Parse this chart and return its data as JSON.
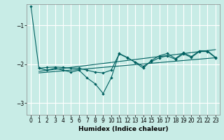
{
  "xlabel": "Humidex (Indice chaleur)",
  "bg_color": "#c8ece6",
  "grid_color": "#ffffff",
  "line_color": "#006060",
  "xlim": [
    -0.5,
    23.5
  ],
  "ylim": [
    -3.3,
    -0.45
  ],
  "yticks": [
    -3,
    -2,
    -1
  ],
  "xticks": [
    0,
    1,
    2,
    3,
    4,
    5,
    6,
    7,
    8,
    9,
    10,
    11,
    12,
    13,
    14,
    15,
    16,
    17,
    18,
    19,
    20,
    21,
    22,
    23
  ],
  "line1_x": [
    0,
    1,
    2,
    3,
    4,
    5,
    6,
    7,
    8,
    9,
    10,
    11,
    12,
    13,
    14,
    15,
    16,
    17,
    18,
    19,
    20,
    21,
    22,
    23
  ],
  "line1_y": [
    -0.5,
    -2.1,
    -2.15,
    -2.1,
    -2.15,
    -2.2,
    -2.15,
    -2.35,
    -2.5,
    -2.75,
    -2.35,
    -1.72,
    -1.82,
    -1.95,
    -2.1,
    -1.9,
    -1.78,
    -1.72,
    -1.85,
    -1.7,
    -1.8,
    -1.65,
    -1.65,
    -1.82
  ],
  "line2_x": [
    1,
    2,
    3,
    4,
    5,
    6,
    7,
    8,
    9,
    10,
    11,
    12,
    13,
    14,
    15,
    16,
    17,
    18,
    19,
    20,
    21,
    22,
    23
  ],
  "line2_y": [
    -2.1,
    -2.08,
    -2.07,
    -2.08,
    -2.1,
    -2.1,
    -2.15,
    -2.2,
    -2.22,
    -2.15,
    -1.73,
    -1.83,
    -1.94,
    -2.05,
    -1.93,
    -1.83,
    -1.78,
    -1.87,
    -1.73,
    -1.82,
    -1.67,
    -1.67,
    -1.83
  ],
  "trend1_x": [
    1,
    23
  ],
  "trend1_y": [
    -2.18,
    -1.62
  ],
  "trend2_x": [
    1,
    23
  ],
  "trend2_y": [
    -2.22,
    -1.83
  ]
}
